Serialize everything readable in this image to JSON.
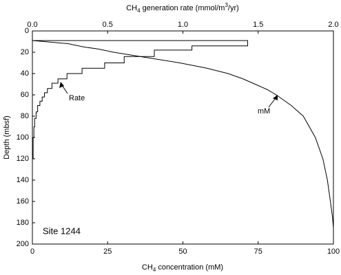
{
  "chart_data": {
    "type": "line",
    "top_axis_label": [
      "CH",
      "4",
      " generation rate (mmol/m",
      "3",
      "/yr)"
    ],
    "bottom_axis_label": [
      "CH",
      "4",
      " concentration (mM)"
    ],
    "y_axis_label": "Depth (mbsf)",
    "annotation": "Site 1244",
    "xlim": [
      0,
      100
    ],
    "xticks": [
      0,
      25,
      50,
      75,
      100
    ],
    "x2lim": [
      0,
      2
    ],
    "x2ticks": [
      {
        "value": 0,
        "label": "0.0"
      },
      0.5,
      {
        "value": 1,
        "label": "1.0"
      },
      1.5,
      {
        "value": 2,
        "label": "2.0"
      }
    ],
    "ylim": [
      0,
      200
    ],
    "yticks": [
      0,
      20,
      40,
      60,
      80,
      100,
      120,
      140,
      160,
      180,
      200
    ],
    "y_inverted": true,
    "series": [
      {
        "name": "Rate",
        "color": "#000000",
        "axis": "x2",
        "x": [
          0,
          1.43,
          1.43,
          1.06,
          1.06,
          0.81,
          0.81,
          0.61,
          0.61,
          0.48,
          0.48,
          0.33,
          0.33,
          0.23,
          0.23,
          0.17,
          0.17,
          0.13,
          0.13,
          0.1,
          0.1,
          0.08,
          0.08,
          0.065,
          0.065,
          0.05,
          0.05,
          0.035,
          0.035,
          0.025,
          0.025,
          0.015,
          0.015,
          0.01,
          0.01,
          0.005,
          0.005,
          0
        ],
        "y": [
          9,
          9,
          14,
          14,
          18,
          18,
          24,
          24,
          30,
          30,
          35,
          35,
          40,
          40,
          45,
          45,
          49,
          49,
          54,
          54,
          58,
          58,
          62,
          62,
          66,
          66,
          70,
          70,
          76,
          76,
          82,
          82,
          90,
          90,
          100,
          100,
          120,
          120
        ]
      },
      {
        "name": "mM",
        "color": "#000000",
        "x": [
          0,
          2,
          6,
          12,
          17,
          22,
          27,
          38,
          49,
          58,
          65,
          70,
          74,
          78,
          81,
          86,
          90,
          94,
          96.5,
          98,
          99,
          99.7,
          100
        ],
        "y": [
          9,
          9.5,
          10.5,
          12,
          15,
          17,
          20,
          25,
          30,
          35,
          40,
          45,
          50,
          55,
          60,
          70,
          80,
          100,
          120,
          140,
          160,
          175,
          185
        ]
      }
    ]
  }
}
